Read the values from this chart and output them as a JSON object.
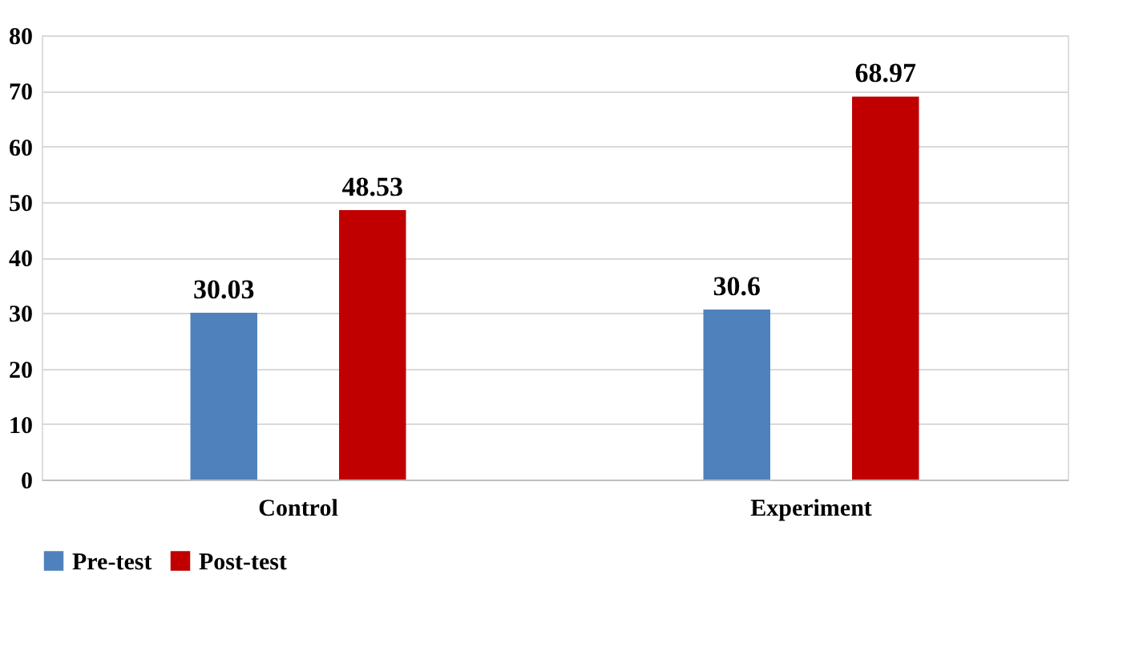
{
  "chart_data": {
    "type": "bar",
    "categories": [
      "Control",
      "Experiment"
    ],
    "series": [
      {
        "name": "Pre-test",
        "color": "#4f81bd",
        "values": [
          30.03,
          30.6
        ]
      },
      {
        "name": "Post-test",
        "color": "#c00000",
        "values": [
          48.53,
          68.97
        ]
      }
    ],
    "ylim": [
      0,
      80
    ],
    "yticks": [
      0,
      10,
      20,
      30,
      40,
      50,
      60,
      70,
      80
    ],
    "grid": "y",
    "legend": "bottom",
    "data_labels": true
  }
}
